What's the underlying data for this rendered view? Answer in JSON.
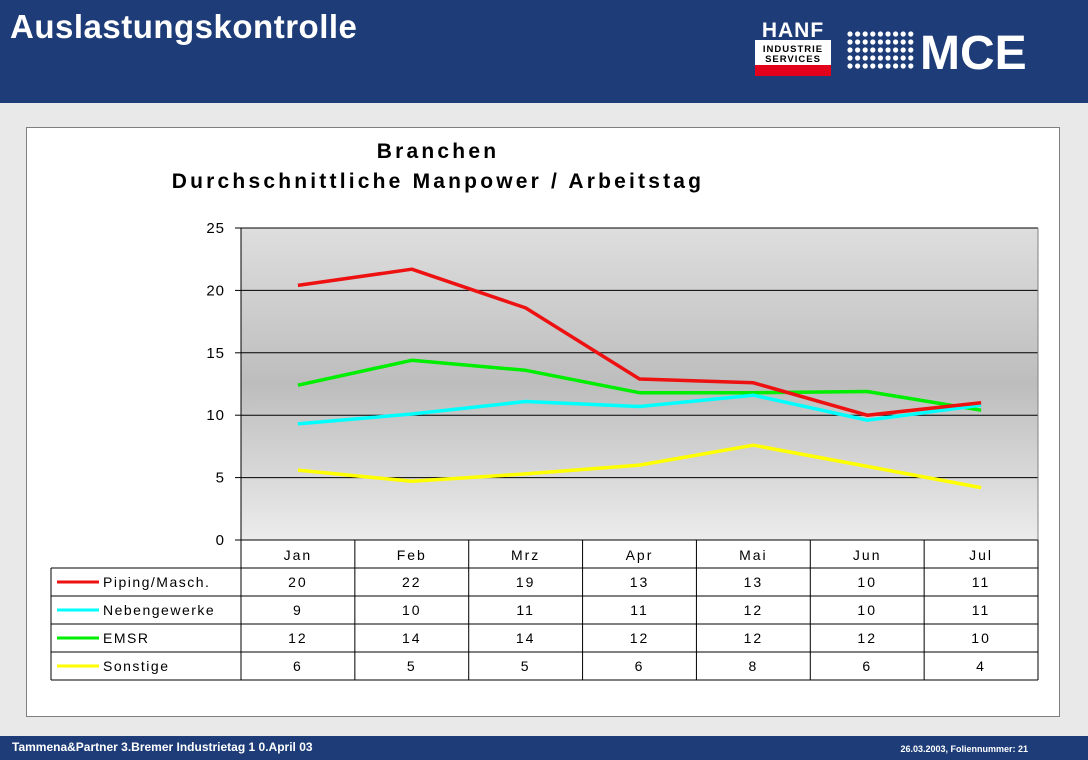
{
  "slide": {
    "title": "Auslastungskontrolle",
    "footer_left": "Tammena&Partner  3.Bremer Industrietag  1 0.April 03",
    "footer_right": "26.03.2003, Foliennummer: 21"
  },
  "logos": {
    "hanf": {
      "line1": "HANF",
      "line2": "INDUSTRIE",
      "line3": "SERVICES"
    },
    "mce": {
      "text": "MCE"
    }
  },
  "colors": {
    "header": "#1e3d78",
    "hanf_red": "#e2001a"
  },
  "chart_data": {
    "type": "line",
    "title": "Branchen",
    "subtitle": "Durchschnittliche Manpower / Arbeitstag",
    "categories": [
      "Jan",
      "Feb",
      "Mrz",
      "Apr",
      "Mai",
      "Jun",
      "Jul"
    ],
    "ylim": [
      0,
      25
    ],
    "yticks": [
      0,
      5,
      10,
      15,
      20,
      25
    ],
    "grid": true,
    "legend": "data-table-below",
    "series": [
      {
        "name": "Piping/Masch.",
        "color": "#ee1111",
        "values": [
          20.4,
          21.7,
          18.6,
          12.9,
          12.6,
          10.0,
          11.0
        ],
        "table": [
          "20",
          "22",
          "19",
          "13",
          "13",
          "10",
          "11"
        ]
      },
      {
        "name": "Nebengewerke",
        "color": "#00ffff",
        "values": [
          9.3,
          10.1,
          11.1,
          10.7,
          11.6,
          9.6,
          10.8
        ],
        "table": [
          "9",
          "10",
          "11",
          "11",
          "12",
          "10",
          "11"
        ]
      },
      {
        "name": "EMSR",
        "color": "#00ee00",
        "values": [
          12.4,
          14.4,
          13.6,
          11.8,
          11.8,
          11.9,
          10.4
        ],
        "table": [
          "12",
          "14",
          "14",
          "12",
          "12",
          "12",
          "10"
        ]
      },
      {
        "name": "Sonstige",
        "color": "#ffff00",
        "values": [
          5.6,
          4.7,
          5.3,
          6.0,
          7.6,
          5.9,
          4.2
        ],
        "table": [
          "6",
          "5",
          "5",
          "6",
          "8",
          "6",
          "4"
        ]
      }
    ]
  }
}
